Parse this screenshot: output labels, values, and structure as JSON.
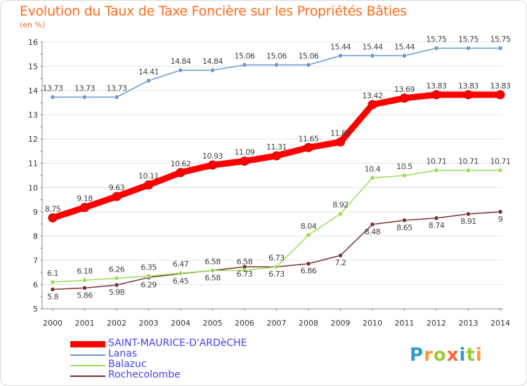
{
  "chart_data": {
    "type": "line",
    "title": "Evolution du Taux de Taxe Foncière sur les Propriétés Bâties",
    "ylabel": "(en %)",
    "xlabel": "",
    "categories": [
      "2000",
      "2001",
      "2002",
      "2003",
      "2004",
      "2005",
      "2006",
      "2007",
      "2008",
      "2009",
      "2010",
      "2011",
      "2012",
      "2013",
      "2014"
    ],
    "ylim": [
      5,
      16
    ],
    "yticks": [
      "5",
      "6",
      "7",
      "8",
      "9",
      "10",
      "11",
      "12",
      "13",
      "14",
      "15",
      "16"
    ],
    "series": [
      {
        "name": "SAINT-MAURICE-D'ARDèCHE",
        "color": "#ff0000",
        "values": [
          8.75,
          9.18,
          9.63,
          10.11,
          10.62,
          10.93,
          11.09,
          11.31,
          11.65,
          11.88,
          13.42,
          13.69,
          13.83,
          13.83,
          13.83
        ],
        "labels": [
          "8.75",
          "9.18",
          "9.63",
          "10.11",
          "10.62",
          "10.93",
          "11.09",
          "11.31",
          "11.65",
          "11.88",
          "13.42",
          "13.69",
          "13.83",
          "13.83",
          "13.83"
        ]
      },
      {
        "name": "Lanas",
        "color": "#6699cc",
        "values": [
          13.73,
          13.73,
          13.73,
          14.41,
          14.84,
          14.84,
          15.06,
          15.06,
          15.06,
          15.44,
          15.44,
          15.44,
          15.75,
          15.75,
          15.75
        ],
        "labels": [
          "13.73",
          "13.73",
          "13.73",
          "14.41",
          "14.84",
          "14.84",
          "15.06",
          "15.06",
          "15.06",
          "15.44",
          "15.44",
          "15.44",
          "15.75",
          "15.75",
          "15.75"
        ]
      },
      {
        "name": "Balazuc",
        "color": "#99dd55",
        "values": [
          6.1,
          6.18,
          6.26,
          6.35,
          6.47,
          6.58,
          6.58,
          6.73,
          8.04,
          8.92,
          10.4,
          10.5,
          10.71,
          10.71,
          10.71
        ],
        "labels": [
          "6.1",
          "6.18",
          "6.26",
          "6.35",
          "6.47",
          "6.58",
          "6.58",
          "6.73",
          "8.04",
          "8.92",
          "10.4",
          "10.5",
          "10.71",
          "10.71",
          "10.71"
        ]
      },
      {
        "name": "Rochecolombe",
        "color": "#773333",
        "values": [
          5.8,
          5.86,
          5.98,
          6.29,
          6.45,
          6.58,
          6.73,
          6.73,
          6.86,
          7.2,
          8.48,
          8.65,
          8.74,
          8.91,
          9
        ],
        "labels": [
          "5.8",
          "5.86",
          "5.98",
          "6.29",
          "6.45",
          "6.58",
          "6.73",
          "6.73",
          "6.86",
          "7.2",
          "8.48",
          "8.65",
          "8.74",
          "8.91",
          "9"
        ]
      }
    ]
  },
  "legend": {
    "items": [
      {
        "label": "SAINT-MAURICE-D'ARDèCHE",
        "color": "#ff0000"
      },
      {
        "label": "Lanas",
        "color": "#6699cc"
      },
      {
        "label": "Balazuc",
        "color": "#99dd55"
      },
      {
        "label": "Rochecolombe",
        "color": "#773333"
      }
    ]
  },
  "logo": {
    "text": "Proxiti",
    "letters": [
      "P",
      "r",
      "o",
      "x",
      "i",
      "t",
      "i"
    ],
    "colors": [
      "#3399cc",
      "#ff9933",
      "#99cc33",
      "#ff6633",
      "#3399cc",
      "#99cc33",
      "#ff9933"
    ]
  }
}
